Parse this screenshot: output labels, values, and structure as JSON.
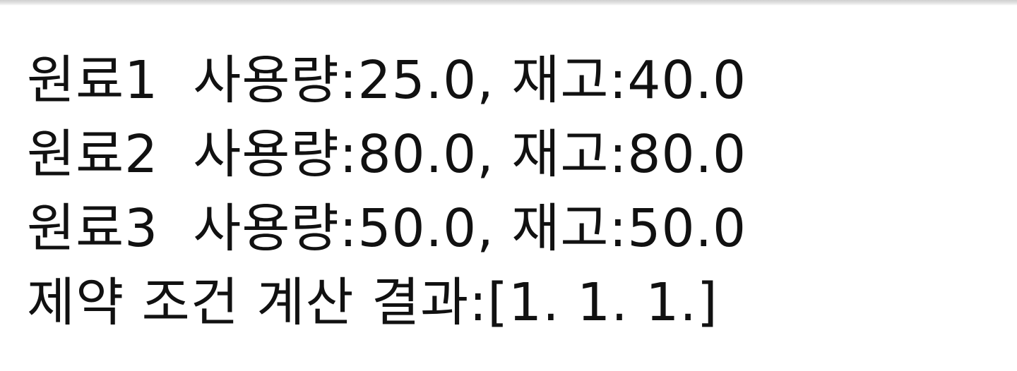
{
  "console": {
    "lines": [
      "원료1  사용량:25.0, 재고:40.0",
      "원료2  사용량:80.0, 재고:80.0",
      "원료3  사용량:50.0, 재고:50.0",
      "제약 조건 계산 결과:[1. 1. 1.]"
    ]
  }
}
